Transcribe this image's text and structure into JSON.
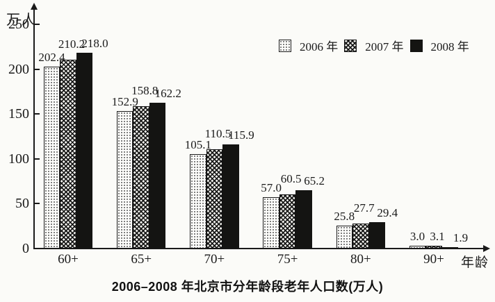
{
  "chart_data": {
    "type": "bar",
    "title": "2006–2008 年北京市分年龄段老年人口数(万人)",
    "y_axis_unit": "万人",
    "x_axis_label": "年龄",
    "categories": [
      "60+",
      "65+",
      "70+",
      "75+",
      "80+",
      "90+"
    ],
    "series": [
      {
        "name": "2006 年",
        "pattern": "dots",
        "values": [
          202.4,
          152.9,
          105.1,
          57.0,
          25.8,
          3.0
        ]
      },
      {
        "name": "2007 年",
        "pattern": "crosshatch",
        "values": [
          210.2,
          158.8,
          110.5,
          60.5,
          27.7,
          3.1
        ]
      },
      {
        "name": "2008 年",
        "pattern": "solid",
        "values": [
          218.0,
          162.2,
          115.9,
          65.2,
          29.4,
          1.9
        ]
      }
    ],
    "ylim": [
      0,
      250
    ],
    "yticks": [
      0,
      50,
      100,
      150,
      200,
      250
    ],
    "value_label_decimals": 1,
    "legend_position": "top-right",
    "grid": false
  },
  "colors": {
    "ink": "#1a1a1a",
    "paper": "#fbfbf8"
  }
}
